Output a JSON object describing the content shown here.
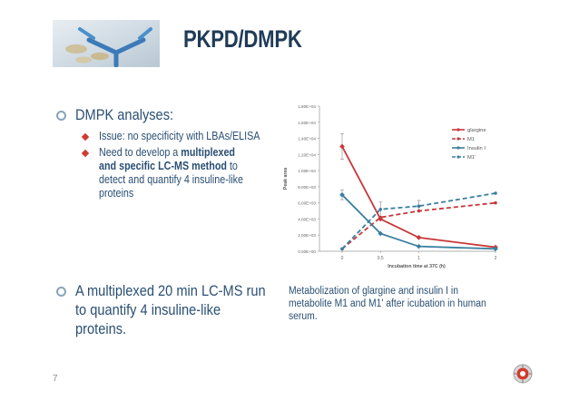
{
  "slide": {
    "title": "PKPD/DMPK",
    "page_number": "7",
    "accent_color": "#1f3b57",
    "bullet_color": "#d13b2f"
  },
  "left": {
    "b1": {
      "text": "DMPK analyses:",
      "subs": [
        {
          "lines": [
            "Issue: no specificity with LBAs/ELISA"
          ]
        },
        {
          "parts": [
            {
              "t": "Need to develop a ",
              "bold": false
            },
            {
              "t": "multiplexed",
              "bold": true
            }
          ],
          "line2_parts": [
            {
              "t": "and specific LC-MS method",
              "bold": true
            },
            {
              "t": " to",
              "bold": false
            }
          ],
          "line3": "detect and quantify 4 insuline-like",
          "line4": "proteins"
        }
      ]
    },
    "b2": {
      "lines": [
        "A multiplexed 20 min LC-MS run",
        "to quantify 4 insuline-like",
        "proteins."
      ]
    }
  },
  "caption": {
    "lines": [
      "Metabolization of glargine and insulin I in",
      "metabolite M1 and M1' after icubation in human",
      "serum."
    ]
  },
  "chart_data": {
    "type": "line",
    "xlabel": "Incubation time at 37C (h)",
    "ylabel": "Peak area",
    "x": [
      0,
      0.5,
      1,
      2
    ],
    "x_tick_labels": [
      "0",
      "0.5",
      "1",
      "2"
    ],
    "y_tick_labels": [
      "0.00E+00",
      "2.00E+03",
      "4.00E+03",
      "6.00E+03",
      "8.00E+03",
      "1.00E+04",
      "1.20E+04",
      "1.40E+04",
      "1.60E+04",
      "1.80E+04"
    ],
    "ylim": [
      0,
      18000
    ],
    "legend_position": "top-right",
    "series": [
      {
        "name": "glargine",
        "color": "#c8373a",
        "dash": false,
        "values": [
          13000,
          4000,
          1700,
          500
        ]
      },
      {
        "name": "M1",
        "color": "#c8373a",
        "dash": true,
        "values": [
          300,
          4200,
          5000,
          6000
        ]
      },
      {
        "name": "Insulin I",
        "color": "#3a7fa0",
        "dash": false,
        "values": [
          7000,
          2200,
          600,
          300
        ]
      },
      {
        "name": "M1'",
        "color": "#3a7fa0",
        "dash": true,
        "values": [
          300,
          5200,
          5600,
          7200
        ]
      }
    ],
    "error_bars": [
      {
        "series": 0,
        "index": 0,
        "low": 11400,
        "high": 14600
      },
      {
        "series": 2,
        "index": 0,
        "low": 6400,
        "high": 7600
      },
      {
        "series": 3,
        "index": 1,
        "low": 4300,
        "high": 6100
      },
      {
        "series": 3,
        "index": 2,
        "low": 5000,
        "high": 6300
      }
    ]
  }
}
